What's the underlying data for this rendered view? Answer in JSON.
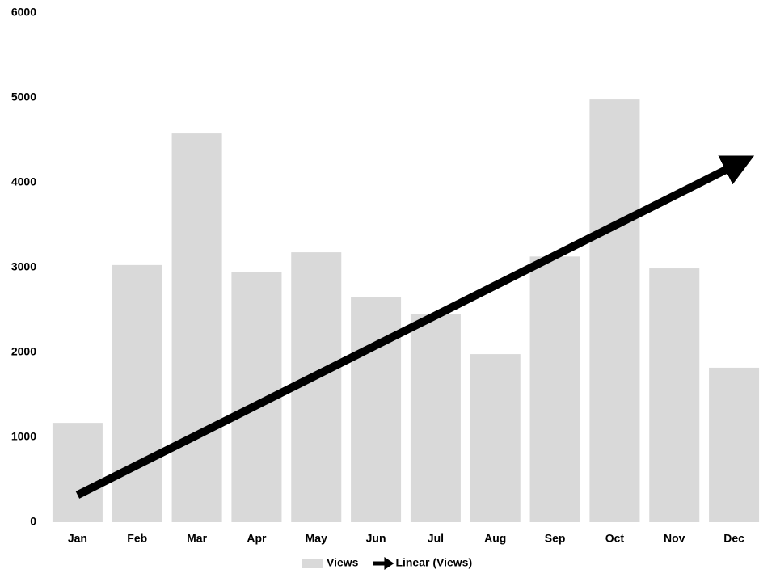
{
  "chart_data": {
    "type": "bar",
    "categories": [
      "Jan",
      "Feb",
      "Mar",
      "Apr",
      "May",
      "Jun",
      "Jul",
      "Aug",
      "Sep",
      "Oct",
      "Nov",
      "Dec"
    ],
    "series": [
      {
        "name": "Views",
        "color": "#d9d9d9",
        "values": [
          1170,
          3030,
          4580,
          2950,
          3180,
          2650,
          2450,
          1980,
          3130,
          4980,
          2990,
          1820
        ]
      },
      {
        "name": "Linear (Views)",
        "color": "#000000",
        "type": "line",
        "values": [
          320,
          673,
          1025,
          1378,
          1731,
          2084,
          2436,
          2789,
          3142,
          3495,
          3847,
          4200
        ]
      }
    ],
    "ylim": [
      0,
      6000
    ],
    "yticks": [
      0,
      1000,
      2000,
      3000,
      4000,
      5000,
      6000
    ],
    "grid": false
  }
}
